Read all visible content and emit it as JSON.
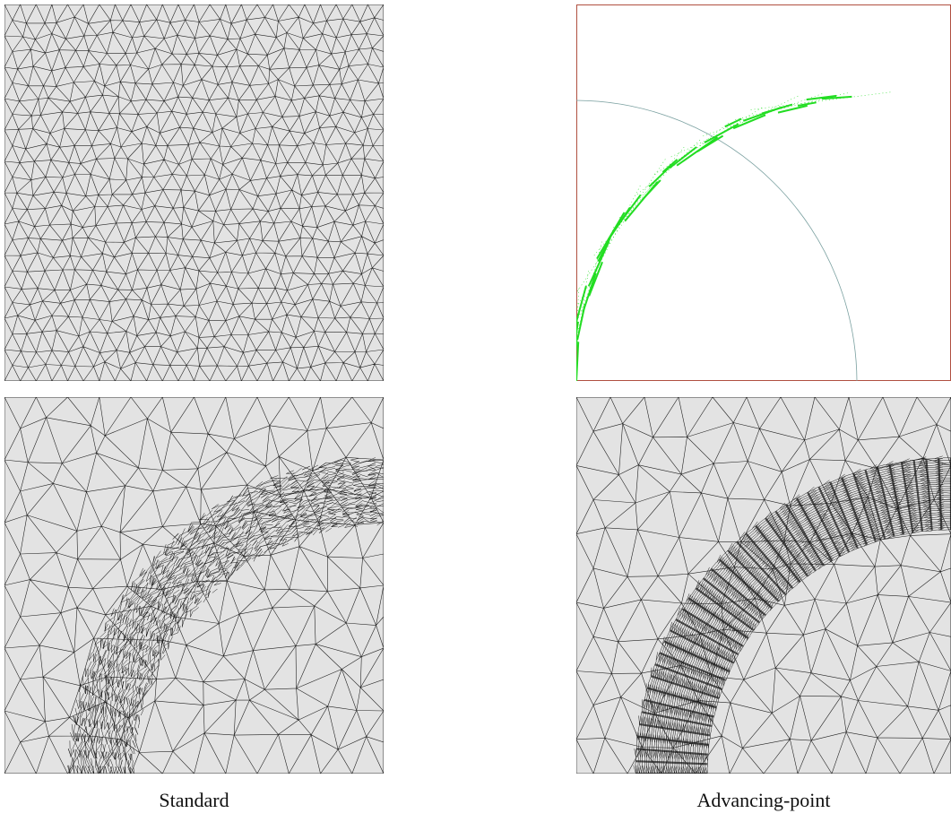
{
  "captions": {
    "left": "Standard",
    "right": "Advancing-point"
  },
  "colors": {
    "mesh_fill": "#e3e3e3",
    "mesh_line": "#222222",
    "seed_line": "#22dd22",
    "seed_border": "#b05040",
    "curve_line": "#7aa0a0"
  }
}
